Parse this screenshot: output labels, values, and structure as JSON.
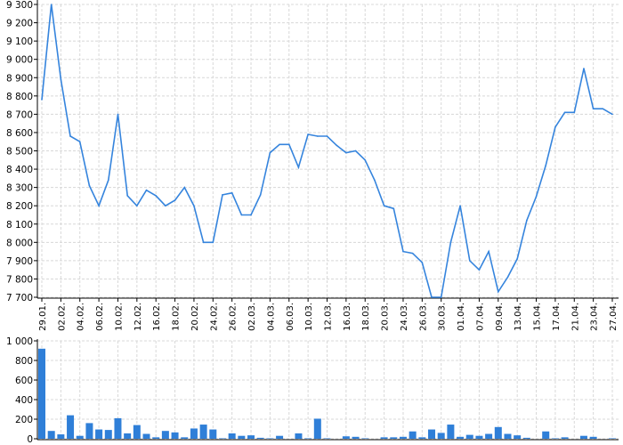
{
  "chart_data": [
    {
      "type": "line",
      "title": "",
      "xlabel": "",
      "ylabel": "",
      "ylim": [
        7700,
        9300
      ],
      "yticks": [
        "7 700",
        "7 800",
        "7 900",
        "8 000",
        "8 100",
        "8 200",
        "8 300",
        "8 400",
        "8 500",
        "8 600",
        "8 700",
        "8 800",
        "8 900",
        "9 000",
        "9 100",
        "9 200",
        "9 300"
      ],
      "xtick_labels": [
        "29.01.",
        "02.02.",
        "04.02.",
        "06.02.",
        "10.02.",
        "12.02.",
        "16.02.",
        "18.02.",
        "20.02.",
        "24.02.",
        "26.02.",
        "02.03.",
        "04.03.",
        "06.03.",
        "10.03.",
        "12.03.",
        "16.03.",
        "18.03.",
        "20.03.",
        "24.03.",
        "26.03.",
        "30.03.",
        "01.04.",
        "07.04.",
        "09.04.",
        "13.04.",
        "15.04.",
        "17.04.",
        "21.04.",
        "23.04.",
        "27.04."
      ],
      "grid": true,
      "color": "#3584dd",
      "values": [
        8780,
        9300,
        8890,
        8580,
        8550,
        8310,
        8200,
        8340,
        8700,
        8255,
        8200,
        8285,
        8255,
        8200,
        8230,
        8300,
        8200,
        8000,
        8000,
        8260,
        8270,
        8150,
        8150,
        8260,
        8490,
        8535,
        8535,
        8410,
        8590,
        8580,
        8580,
        8530,
        8490,
        8500,
        8450,
        8340,
        8200,
        8185,
        7950,
        7940,
        7890,
        7700,
        7700,
        8000,
        8200,
        7900,
        7850,
        7950,
        7730,
        7810,
        7910,
        8120,
        8250,
        8420,
        8630,
        8710,
        8710,
        8950,
        8730,
        8730,
        8700
      ]
    },
    {
      "type": "bar",
      "title": "",
      "xlabel": "",
      "ylabel": "",
      "ylim": [
        0,
        1000
      ],
      "yticks": [
        "0",
        "200",
        "400",
        "600",
        "800",
        "1 000"
      ],
      "grid": true,
      "color": "#2f7fd8",
      "values": [
        920,
        80,
        45,
        240,
        30,
        160,
        95,
        90,
        210,
        55,
        140,
        50,
        15,
        80,
        65,
        15,
        105,
        145,
        95,
        5,
        55,
        30,
        35,
        10,
        5,
        30,
        0,
        55,
        5,
        205,
        5,
        0,
        25,
        20,
        5,
        0,
        15,
        15,
        20,
        75,
        15,
        95,
        60,
        145,
        20,
        40,
        30,
        50,
        120,
        50,
        35,
        10,
        0,
        75,
        5,
        15,
        0,
        30,
        20,
        0,
        5
      ]
    }
  ]
}
